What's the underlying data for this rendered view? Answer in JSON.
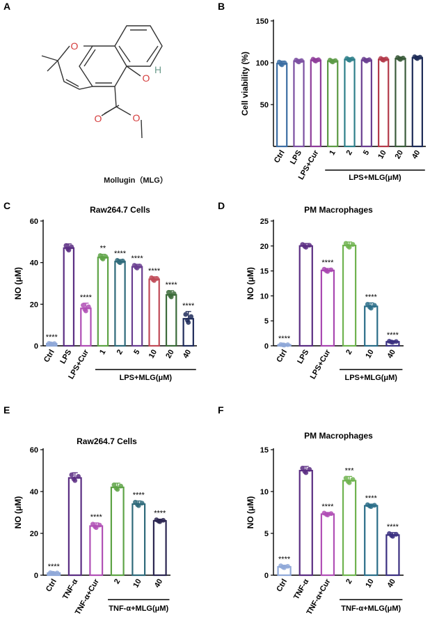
{
  "panels": {
    "A": {
      "letter": "A",
      "caption": "Mollugin（MLG）",
      "atom_o_ring": "O",
      "atom_oh": "O",
      "atom_h": "H",
      "atom_carbonyl": "O",
      "atom_ester": "O"
    },
    "B": {
      "letter": "B"
    },
    "C": {
      "letter": "C"
    },
    "D": {
      "letter": "D"
    },
    "E": {
      "letter": "E"
    },
    "F": {
      "letter": "F"
    }
  },
  "chart_data": [
    {
      "id": "B",
      "type": "bar",
      "title": "",
      "ylabel": "Cell viability (%)",
      "ylim": [
        0,
        150
      ],
      "yticks": [
        50,
        100,
        150
      ],
      "categories": [
        "Ctrl",
        "LPS",
        "LPS+Cur",
        "1",
        "2",
        "5",
        "10",
        "20",
        "40"
      ],
      "values": [
        99,
        102,
        103,
        102,
        104,
        103,
        104,
        105,
        106
      ],
      "errors": [
        3,
        2,
        2,
        2,
        2,
        2,
        2,
        2,
        2
      ],
      "colors": [
        "#3c6ea3",
        "#7b4fa1",
        "#8e3c99",
        "#5c9a45",
        "#2e7f89",
        "#6a3e90",
        "#b33a4a",
        "#3a5b3a",
        "#1d2b57"
      ],
      "significance": [
        "",
        "",
        "",
        "",
        "",
        "",
        "",
        "",
        ""
      ],
      "group_label": "LPS+MLG(μM)",
      "group_start": 3
    },
    {
      "id": "C",
      "type": "bar",
      "title": "Raw264.7 Cells",
      "ylabel": "NO (μM)",
      "ylim": [
        0,
        60
      ],
      "yticks": [
        0,
        20,
        40,
        60
      ],
      "categories": [
        "Ctrl",
        "LPS",
        "LPS+Cur",
        "1",
        "2",
        "5",
        "10",
        "20",
        "40"
      ],
      "values": [
        1,
        47,
        18,
        42.5,
        40.5,
        38,
        32,
        24.5,
        13
      ],
      "errors": [
        0.3,
        2,
        2.5,
        1.5,
        1,
        1.2,
        1.2,
        2,
        3.5
      ],
      "colors": [
        "#8fa8d8",
        "#5a2d82",
        "#b04fb5",
        "#5ea346",
        "#2f6a7a",
        "#6a3e90",
        "#c04a57",
        "#3c6b3a",
        "#1f2b5a"
      ],
      "significance": [
        "****",
        "",
        "****",
        "**",
        "****",
        "****",
        "****",
        "****",
        "****"
      ],
      "group_label": "LPS+MLG(μM)",
      "group_start": 3
    },
    {
      "id": "D",
      "type": "bar",
      "title": "PM Macrophages",
      "ylabel": "NO (μM)",
      "ylim": [
        0,
        25
      ],
      "yticks": [
        0,
        5,
        10,
        15,
        20,
        25
      ],
      "categories": [
        "Ctrl",
        "LPS",
        "LPS+Cur",
        "2",
        "10",
        "40"
      ],
      "values": [
        0.2,
        20,
        15.1,
        20.1,
        7.9,
        0.8
      ],
      "errors": [
        0.1,
        0.5,
        0.4,
        0.7,
        0.7,
        0.2
      ],
      "colors": [
        "#8fa8d8",
        "#5a2d82",
        "#a847b0",
        "#6fb34f",
        "#2a6d88",
        "#3a2f80"
      ],
      "significance": [
        "****",
        "",
        "****",
        "",
        "****",
        "****"
      ],
      "group_label": "LPS+MLG(μM)",
      "group_start": 3
    },
    {
      "id": "E",
      "type": "bar",
      "title": "Raw264.7 Cells",
      "ylabel": "NO (μM)",
      "ylim": [
        0,
        60
      ],
      "yticks": [
        0,
        20,
        40,
        60
      ],
      "categories": [
        "Ctrl",
        "TNF-α",
        "TNF-α+Cur",
        "2",
        "10",
        "40"
      ],
      "values": [
        1,
        46.5,
        23.5,
        42,
        34,
        26
      ],
      "errors": [
        0.3,
        2.5,
        1.5,
        2,
        1.5,
        0.8
      ],
      "colors": [
        "#8fa8d8",
        "#5a2d82",
        "#b04fb5",
        "#5ea346",
        "#2f6a7a",
        "#2a2550"
      ],
      "significance": [
        "****",
        "",
        "****",
        "",
        "****",
        "****"
      ],
      "group_label": "TNF-α+MLG(μM)",
      "group_start": 3
    },
    {
      "id": "F",
      "type": "bar",
      "title": "PM Macrophages",
      "ylabel": "NO (μM)",
      "ylim": [
        0,
        15
      ],
      "yticks": [
        0,
        5,
        10,
        15
      ],
      "categories": [
        "Ctrl",
        "TNF-α",
        "TNF-α+Cur",
        "2",
        "10",
        "40"
      ],
      "values": [
        1,
        12.5,
        7.3,
        11.3,
        8.3,
        4.8
      ],
      "errors": [
        0.2,
        0.5,
        0.2,
        0.5,
        0.2,
        0.3
      ],
      "colors": [
        "#8fa8d8",
        "#5a2d82",
        "#b04fb5",
        "#6fb34f",
        "#2a6d88",
        "#3a2f80"
      ],
      "significance": [
        "****",
        "",
        "****",
        "***",
        "****",
        "****"
      ],
      "group_label": "TNF-α+MLG(μM)",
      "group_start": 3
    }
  ]
}
